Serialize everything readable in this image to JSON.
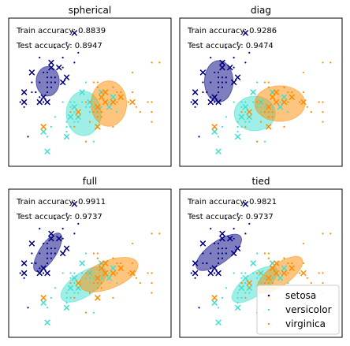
{
  "colors": {
    "setosa": "#000080",
    "versicolor": "#40e0d0",
    "virginica": "#ff8c00"
  },
  "legend": {
    "placement": "lower-right",
    "entries": [
      {
        "label": "setosa",
        "color": "#000080"
      },
      {
        "label": "versicolor",
        "color": "#40e0d0"
      },
      {
        "label": "virginica",
        "color": "#ff8c00"
      }
    ]
  },
  "chart_data": [
    {
      "type": "scatter",
      "title": "spherical",
      "train_text": "Train accuracy: 0.8839",
      "test_text": "Test accuracy: 0.8947",
      "ellipses": [
        {
          "cls": "setosa",
          "cx": 5.01,
          "cy": 3.42,
          "rx": 0.3,
          "ry": 0.3,
          "angle": 0
        },
        {
          "cls": "versicolor",
          "cx": 5.94,
          "cy": 2.77,
          "rx": 0.45,
          "ry": 0.45,
          "angle": 0
        },
        {
          "cls": "virginica",
          "cx": 6.59,
          "cy": 2.97,
          "rx": 0.46,
          "ry": 0.46,
          "angle": 0
        }
      ]
    },
    {
      "type": "scatter",
      "title": "diag",
      "train_text": "Train accuracy: 0.9286",
      "test_text": "Test accuracy: 0.9474",
      "ellipses": [
        {
          "cls": "setosa",
          "cx": 5.01,
          "cy": 3.42,
          "rx": 0.37,
          "ry": 0.42,
          "angle": 0
        },
        {
          "cls": "versicolor",
          "cx": 5.94,
          "cy": 2.77,
          "rx": 0.53,
          "ry": 0.35,
          "angle": 0
        },
        {
          "cls": "virginica",
          "cx": 6.59,
          "cy": 2.97,
          "rx": 0.65,
          "ry": 0.36,
          "angle": 0
        }
      ]
    },
    {
      "type": "scatter",
      "title": "full",
      "train_text": "Train accuracy: 0.9911",
      "test_text": "Test accuracy: 0.9737",
      "ellipses": [
        {
          "cls": "setosa",
          "cx": 5.01,
          "cy": 3.42,
          "rx": 0.58,
          "ry": 0.17,
          "angle": 57
        },
        {
          "cls": "versicolor",
          "cx": 5.94,
          "cy": 2.77,
          "rx": 0.68,
          "ry": 0.24,
          "angle": 34
        },
        {
          "cls": "virginica",
          "cx": 6.59,
          "cy": 2.97,
          "rx": 0.8,
          "ry": 0.28,
          "angle": 22
        }
      ]
    },
    {
      "type": "scatter",
      "title": "tied",
      "train_text": "Train accuracy: 0.9821",
      "test_text": "Test accuracy: 0.9737",
      "ellipses": [
        {
          "cls": "setosa",
          "cx": 5.01,
          "cy": 3.42,
          "rx": 0.7,
          "ry": 0.22,
          "angle": 36
        },
        {
          "cls": "versicolor",
          "cx": 5.94,
          "cy": 2.77,
          "rx": 0.7,
          "ry": 0.22,
          "angle": 36
        },
        {
          "cls": "virginica",
          "cx": 6.59,
          "cy": 2.97,
          "rx": 0.7,
          "ry": 0.22,
          "angle": 36
        }
      ]
    }
  ],
  "points": {
    "train_setosa": [
      [
        4.8,
        3.9
      ],
      [
        5.0,
        3.6
      ],
      [
        5.4,
        3.7
      ],
      [
        4.6,
        3.4
      ],
      [
        5.1,
        3.5
      ],
      [
        4.9,
        3.0
      ],
      [
        4.7,
        3.2
      ],
      [
        5.0,
        3.4
      ],
      [
        5.2,
        3.5
      ],
      [
        5.5,
        4.2
      ],
      [
        5.4,
        3.4
      ],
      [
        4.8,
        3.1
      ],
      [
        5.1,
        3.8
      ],
      [
        4.4,
        2.9
      ],
      [
        5.7,
        3.8
      ],
      [
        5.3,
        3.7
      ],
      [
        4.9,
        3.1
      ],
      [
        5.0,
        3.3
      ],
      [
        4.6,
        3.2
      ],
      [
        5.2,
        4.1
      ],
      [
        4.3,
        3.0
      ],
      [
        5.1,
        3.3
      ],
      [
        4.5,
        2.3
      ],
      [
        5.0,
        3.2
      ],
      [
        4.9,
        3.6
      ],
      [
        5.4,
        3.9
      ],
      [
        5.1,
        3.4
      ],
      [
        4.8,
        3.4
      ],
      [
        5.2,
        3.4
      ],
      [
        4.7,
        3.2
      ],
      [
        5.0,
        3.5
      ],
      [
        5.8,
        4.0
      ]
    ],
    "test_setosa": [
      [
        4.4,
        3.2
      ],
      [
        5.1,
        3.7
      ],
      [
        5.7,
        4.4
      ],
      [
        4.6,
        3.6
      ],
      [
        5.4,
        3.4
      ],
      [
        5.0,
        3.0
      ],
      [
        4.4,
        3.0
      ],
      [
        5.3,
        3.7
      ],
      [
        5.1,
        3.8
      ],
      [
        5.5,
        3.5
      ],
      [
        4.8,
        3.0
      ],
      [
        4.9,
        3.1
      ]
    ],
    "train_versicolor": [
      [
        5.5,
        2.4
      ],
      [
        6.0,
        2.2
      ],
      [
        5.8,
        2.7
      ],
      [
        6.1,
        2.9
      ],
      [
        6.6,
        3.0
      ],
      [
        6.3,
        2.5
      ],
      [
        5.6,
        2.9
      ],
      [
        6.7,
        3.1
      ],
      [
        5.7,
        2.8
      ],
      [
        6.2,
        2.2
      ],
      [
        5.9,
        3.0
      ],
      [
        6.1,
        2.8
      ],
      [
        6.4,
        2.9
      ],
      [
        5.6,
        3.0
      ],
      [
        5.8,
        2.6
      ],
      [
        6.0,
        2.9
      ],
      [
        5.5,
        2.5
      ],
      [
        6.3,
        3.3
      ],
      [
        5.7,
        2.6
      ],
      [
        5.0,
        2.3
      ],
      [
        5.2,
        2.7
      ],
      [
        6.8,
        2.8
      ],
      [
        6.0,
        3.4
      ],
      [
        5.4,
        3.0
      ],
      [
        6.9,
        3.1
      ],
      [
        5.6,
        2.5
      ],
      [
        6.2,
        2.9
      ],
      [
        5.7,
        3.0
      ],
      [
        5.5,
        2.6
      ],
      [
        5.1,
        2.5
      ]
    ],
    "test_versicolor": [
      [
        4.9,
        2.4
      ],
      [
        6.7,
        3.0
      ],
      [
        5.0,
        2.0
      ],
      [
        6.6,
        2.9
      ],
      [
        5.8,
        2.7
      ],
      [
        6.4,
        3.2
      ],
      [
        5.6,
        2.7
      ],
      [
        6.1,
        3.0
      ],
      [
        5.5,
        2.3
      ],
      [
        6.7,
        3.1
      ],
      [
        5.9,
        3.2
      ],
      [
        5.7,
        2.9
      ]
    ],
    "train_virginica": [
      [
        6.3,
        3.3
      ],
      [
        7.1,
        3.0
      ],
      [
        6.5,
        3.0
      ],
      [
        7.6,
        3.0
      ],
      [
        6.7,
        3.3
      ],
      [
        7.2,
        3.6
      ],
      [
        6.4,
        2.7
      ],
      [
        6.8,
        3.0
      ],
      [
        5.7,
        2.5
      ],
      [
        5.8,
        2.8
      ],
      [
        6.4,
        3.2
      ],
      [
        6.5,
        3.0
      ],
      [
        7.7,
        3.8
      ],
      [
        7.7,
        2.6
      ],
      [
        6.0,
        2.2
      ],
      [
        6.9,
        3.2
      ],
      [
        5.6,
        2.8
      ],
      [
        7.7,
        2.8
      ],
      [
        6.3,
        2.7
      ],
      [
        6.7,
        3.3
      ],
      [
        7.2,
        3.2
      ],
      [
        6.2,
        2.8
      ],
      [
        6.1,
        3.0
      ],
      [
        6.4,
        2.8
      ],
      [
        7.4,
        2.8
      ],
      [
        7.9,
        3.8
      ],
      [
        6.3,
        2.8
      ],
      [
        6.1,
        2.6
      ],
      [
        7.7,
        3.0
      ],
      [
        6.3,
        3.4
      ],
      [
        6.0,
        3.0
      ],
      [
        6.9,
        3.1
      ],
      [
        5.8,
        2.7
      ],
      [
        6.8,
        3.2
      ],
      [
        6.7,
        2.5
      ],
      [
        6.2,
        3.4
      ],
      [
        7.3,
        2.9
      ]
    ],
    "test_virginica": [
      [
        4.9,
        2.5
      ],
      [
        6.5,
        3.2
      ],
      [
        6.4,
        3.1
      ],
      [
        5.8,
        2.8
      ],
      [
        6.3,
        2.9
      ],
      [
        6.5,
        3.0
      ],
      [
        6.7,
        3.0
      ],
      [
        6.9,
        3.1
      ],
      [
        6.3,
        2.5
      ],
      [
        7.2,
        3.0
      ]
    ]
  }
}
